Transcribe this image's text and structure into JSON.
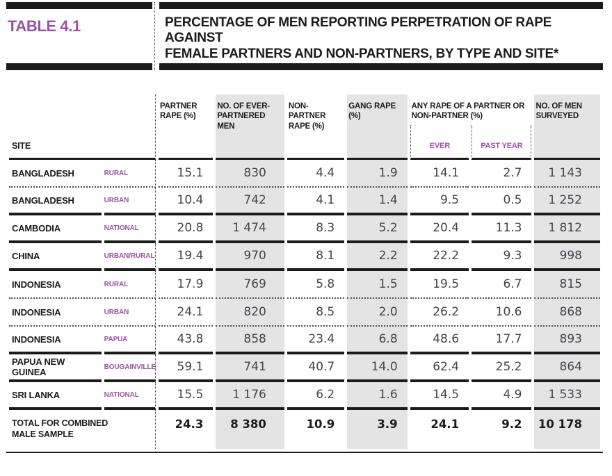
{
  "colors": {
    "accent_purple": "#9c52a5",
    "ink": "#1d1a1b",
    "column_shade": "#e4e4e5",
    "number_ink": "#45434a"
  },
  "header_band": {
    "table_label": "TABLE 4.1",
    "title_line1": "PERCENTAGE OF MEN REPORTING PERPETRATION OF RAPE AGAINST",
    "title_line2": "FEMALE PARTNERS AND NON-PARTNERS, BY TYPE AND SITE*"
  },
  "table": {
    "site_column_header": "SITE",
    "column_headers": {
      "partner_rape": "PARTNER RAPE (%)",
      "ever_partnered_men": "NO. OF EVER-PARTNERED MEN",
      "non_partner_rape": "NON-PARTNER RAPE (%)",
      "gang_rape": "GANG RAPE (%)",
      "any_rape": "ANY RAPE OF A PARTNER OR NON-PARTNER (%)",
      "any_rape_ever": "EVER",
      "any_rape_past_year": "PAST YEAR",
      "men_surveyed": "NO. OF MEN SURVEYED"
    },
    "rows": [
      {
        "country": "BANGLADESH",
        "site": "RURAL",
        "partner_rape": "15.1",
        "ever_partnered_men": "830",
        "non_partner_rape": "4.4",
        "gang_rape": "1.9",
        "any_rape_ever": "14.1",
        "any_rape_past_year": "2.7",
        "men_surveyed": "1 143"
      },
      {
        "country": "BANGLADESH",
        "site": "URBAN",
        "partner_rape": "10.4",
        "ever_partnered_men": "742",
        "non_partner_rape": "4.1",
        "gang_rape": "1.4",
        "any_rape_ever": "9.5",
        "any_rape_past_year": "0.5",
        "men_surveyed": "1 252"
      },
      {
        "country": "CAMBODIA",
        "site": "NATIONAL",
        "partner_rape": "20.8",
        "ever_partnered_men": "1 474",
        "non_partner_rape": "8.3",
        "gang_rape": "5.2",
        "any_rape_ever": "20.4",
        "any_rape_past_year": "11.3",
        "men_surveyed": "1 812"
      },
      {
        "country": "CHINA",
        "site": "URBAN/RURAL",
        "partner_rape": "19.4",
        "ever_partnered_men": "970",
        "non_partner_rape": "8.1",
        "gang_rape": "2.2",
        "any_rape_ever": "22.2",
        "any_rape_past_year": "9.3",
        "men_surveyed": "998"
      },
      {
        "country": "INDONESIA",
        "site": "RURAL",
        "partner_rape": "17.9",
        "ever_partnered_men": "769",
        "non_partner_rape": "5.8",
        "gang_rape": "1.5",
        "any_rape_ever": "19.5",
        "any_rape_past_year": "6.7",
        "men_surveyed": "815"
      },
      {
        "country": "INDONESIA",
        "site": "URBAN",
        "partner_rape": "24.1",
        "ever_partnered_men": "820",
        "non_partner_rape": "8.5",
        "gang_rape": "2.0",
        "any_rape_ever": "26.2",
        "any_rape_past_year": "10.6",
        "men_surveyed": "868"
      },
      {
        "country": "INDONESIA",
        "site": "PAPUA",
        "partner_rape": "43.8",
        "ever_partnered_men": "858",
        "non_partner_rape": "23.4",
        "gang_rape": "6.8",
        "any_rape_ever": "48.6",
        "any_rape_past_year": "17.7",
        "men_surveyed": "893"
      },
      {
        "country": "PAPUA NEW GUINEA",
        "site": "BOUGAINVILLE",
        "partner_rape": "59.1",
        "ever_partnered_men": "741",
        "non_partner_rape": "40.7",
        "gang_rape": "14.0",
        "any_rape_ever": "62.4",
        "any_rape_past_year": "25.2",
        "men_surveyed": "864"
      },
      {
        "country": "SRI LANKA",
        "site": "NATIONAL",
        "partner_rape": "15.5",
        "ever_partnered_men": "1 176",
        "non_partner_rape": "6.2",
        "gang_rape": "1.6",
        "any_rape_ever": "14.5",
        "any_rape_past_year": "4.9",
        "men_surveyed": "1 533"
      }
    ],
    "total_row": {
      "label": "TOTAL FOR COMBINED MALE SAMPLE",
      "partner_rape": "24.3",
      "ever_partnered_men": "8 380",
      "non_partner_rape": "10.9",
      "gang_rape": "3.9",
      "any_rape_ever": "24.1",
      "any_rape_past_year": "9.2",
      "men_surveyed": "10 178"
    }
  }
}
